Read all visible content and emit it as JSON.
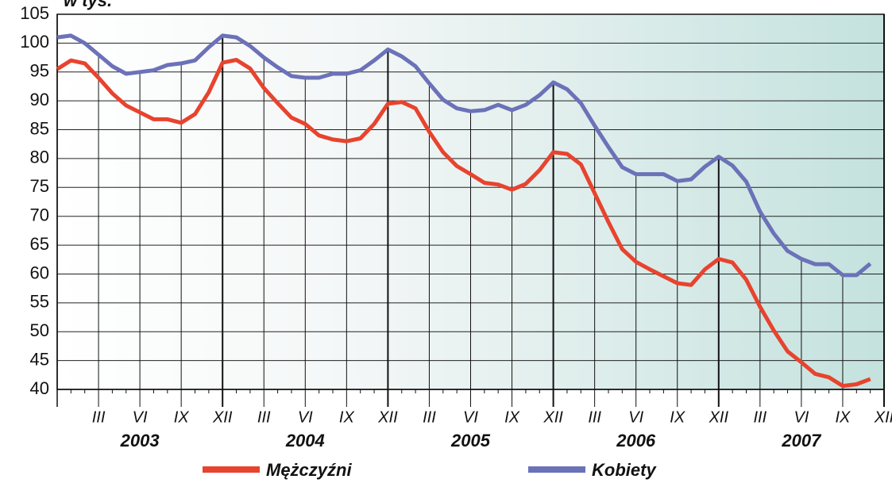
{
  "chart_data": {
    "type": "line",
    "y_label": "w tys.",
    "categories": [
      null,
      null,
      null,
      "III",
      null,
      null,
      "VI",
      null,
      null,
      "IX",
      null,
      null,
      "XII",
      null,
      null,
      "III",
      null,
      null,
      "VI",
      null,
      null,
      "IX",
      null,
      null,
      "XII",
      null,
      null,
      "III",
      null,
      null,
      "VI",
      null,
      null,
      "IX",
      null,
      null,
      "XII",
      null,
      null,
      "III",
      null,
      null,
      "VI",
      null,
      null,
      "IX",
      null,
      null,
      "XII",
      null,
      null,
      "III",
      null,
      null,
      "VI",
      null,
      null,
      "IX",
      null,
      null,
      "XII"
    ],
    "years": [
      "2003",
      "2004",
      "2005",
      "2006",
      "2007"
    ],
    "series": [
      {
        "name": "Mężczyźni",
        "color": "#e8432e",
        "values": [
          95.5,
          97,
          96.5,
          94,
          91.3,
          89.2,
          88,
          86.8,
          86.8,
          86.2,
          87.7,
          91.5,
          96.6,
          97.1,
          95.6,
          92.2,
          89.6,
          87.1,
          86,
          84,
          83.3,
          83,
          83.5,
          86,
          89.5,
          89.8,
          88.7,
          84.6,
          81.1,
          78.7,
          77.3,
          75.8,
          75.5,
          74.6,
          75.6,
          78,
          81.1,
          80.8,
          79,
          74,
          69,
          64.3,
          62.1,
          60.8,
          59.6,
          58.4,
          58.1,
          60.8,
          62.6,
          62,
          59,
          54.3,
          50.2,
          46.6,
          44.7,
          42.7,
          42.1,
          40.6,
          40.9,
          41.8,
          null
        ]
      },
      {
        "name": "Kobiety",
        "color": "#6b72b8",
        "values": [
          101,
          101.3,
          100,
          98,
          96,
          94.7,
          95,
          95.3,
          96.2,
          96.5,
          97,
          99.3,
          101.3,
          101,
          99.5,
          97.5,
          95.8,
          94.3,
          94,
          94,
          94.7,
          94.7,
          95.3,
          97,
          98.9,
          97.7,
          96,
          93,
          90.2,
          88.7,
          88.2,
          88.4,
          89.3,
          88.4,
          89.3,
          91,
          93.2,
          92,
          89.6,
          85.7,
          82,
          78.5,
          77.3,
          77.3,
          77.3,
          76.1,
          76.4,
          78.6,
          80.3,
          78.8,
          76,
          70.8,
          67,
          64,
          62.6,
          61.7,
          61.7,
          59.8,
          59.8,
          61.8,
          null
        ]
      }
    ],
    "ylim": [
      40,
      105
    ],
    "yticks": [
      40,
      45,
      50,
      55,
      60,
      65,
      70,
      75,
      80,
      85,
      90,
      95,
      100,
      105
    ],
    "grid": true,
    "legend": "bottom"
  }
}
